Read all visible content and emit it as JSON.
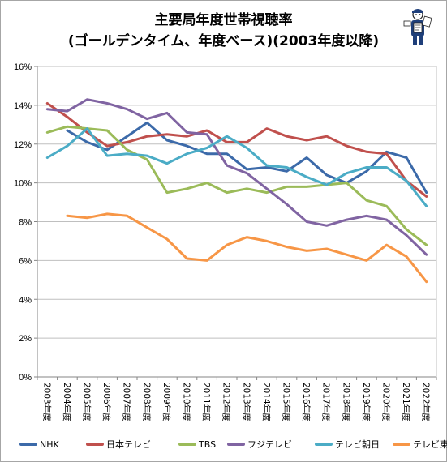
{
  "chart_data": {
    "type": "line",
    "title_line1": "主要局年度世帯視聴率",
    "title_line2": "(ゴールデンタイム、年度ベース)(2003年度以降)",
    "xlabel": "",
    "ylabel": "",
    "ylim": [
      0,
      16
    ],
    "yticks": [
      "0%",
      "2%",
      "4%",
      "6%",
      "8%",
      "10%",
      "12%",
      "14%",
      "16%"
    ],
    "grid": true,
    "legend_position": "bottom",
    "categories": [
      "2003年度",
      "2004年度",
      "2005年度",
      "2006年度",
      "2007年度",
      "2008年度",
      "2009年度",
      "2010年度",
      "2011年度",
      "2012年度",
      "2013年度",
      "2014年度",
      "2015年度",
      "2016年度",
      "2017年度",
      "2018年度",
      "2019年度",
      "2020年度",
      "2021年度",
      "2022年度"
    ],
    "series": [
      {
        "name": "NHK",
        "color": "#3c6aa9",
        "values": [
          null,
          12.7,
          12.1,
          11.7,
          12.4,
          13.1,
          12.2,
          11.9,
          11.5,
          11.5,
          10.7,
          10.8,
          10.6,
          11.3,
          10.4,
          10.0,
          10.6,
          11.6,
          11.3,
          9.5
        ]
      },
      {
        "name": "日本テレビ",
        "color": "#c0504d",
        "values": [
          14.1,
          13.4,
          12.6,
          11.9,
          12.1,
          12.4,
          12.5,
          12.4,
          12.7,
          12.1,
          12.1,
          12.8,
          12.4,
          12.2,
          12.4,
          11.9,
          11.6,
          11.5,
          10.1,
          9.3
        ]
      },
      {
        "name": "TBS",
        "color": "#9bbb59",
        "values": [
          12.6,
          12.9,
          12.8,
          12.7,
          11.7,
          11.2,
          9.5,
          9.7,
          10.0,
          9.5,
          9.7,
          9.5,
          9.8,
          9.8,
          9.9,
          10.0,
          9.1,
          8.8,
          7.6,
          6.8
        ]
      },
      {
        "name": "フジテレビ",
        "color": "#8064a2",
        "values": [
          13.8,
          13.7,
          14.3,
          14.1,
          13.8,
          13.3,
          13.6,
          12.6,
          12.5,
          10.9,
          10.5,
          9.7,
          8.9,
          8.0,
          7.8,
          8.1,
          8.3,
          8.1,
          7.3,
          6.3
        ]
      },
      {
        "name": "テレビ朝日",
        "color": "#4bacc6",
        "values": [
          11.3,
          11.9,
          12.8,
          11.4,
          11.5,
          11.4,
          11.0,
          11.5,
          11.8,
          12.4,
          11.8,
          10.9,
          10.8,
          10.3,
          9.9,
          10.5,
          10.8,
          10.8,
          10.1,
          8.8
        ]
      },
      {
        "name": "テレビ東京",
        "color": "#f79646",
        "values": [
          null,
          8.3,
          8.2,
          8.4,
          8.3,
          7.7,
          7.1,
          6.1,
          6.0,
          6.8,
          7.2,
          7.0,
          6.7,
          6.5,
          6.6,
          6.3,
          6.0,
          6.8,
          6.2,
          4.9
        ]
      }
    ]
  },
  "mascot": {
    "icon": "reporter-mascot-icon"
  }
}
